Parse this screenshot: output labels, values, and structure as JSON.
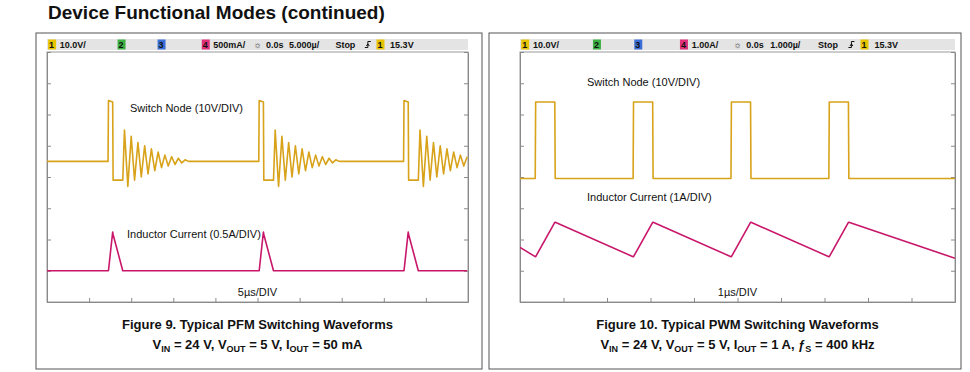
{
  "heading": "Device Functional Modes (continued)",
  "chart_data": [
    {
      "type": "line",
      "title": "Figure 9. Typical PFM Switching Waveforms",
      "subtitle": "VIN = 24 V, VOUT = 5 V, IOUT = 50 mA",
      "status_bar": [
        "1",
        "10.0V/",
        "2",
        "3",
        "4",
        "500mA/",
        "☼",
        "0.0s",
        "5.000µ/",
        "Stop",
        "1",
        "15.3V"
      ],
      "annotations": [
        "5µs/DIV"
      ],
      "x": [
        0,
        7.25,
        7.3,
        7.8,
        7.85,
        9.0,
        9.2,
        9.6,
        10.0,
        10.4,
        10.8,
        11.2,
        11.6,
        12.0,
        12.4,
        12.8,
        13.2,
        13.6,
        14.0,
        14.4,
        14.8,
        15.2,
        15.6,
        16.0,
        16.4,
        16.8,
        25.15,
        25.2,
        25.7,
        25.75,
        26.9,
        27.1,
        27.5,
        27.9,
        28.3,
        28.7,
        29.1,
        29.5,
        29.9,
        30.3,
        30.7,
        31.1,
        31.5,
        31.9,
        32.3,
        32.7,
        33.1,
        33.5,
        33.9,
        34.3,
        34.7,
        42.35,
        42.4,
        42.9,
        42.95,
        44.1,
        44.3,
        44.7,
        45.1,
        45.5,
        45.9,
        46.3,
        46.7,
        47.1,
        47.5,
        47.9,
        48.3,
        48.7,
        49.1,
        49.5,
        49.9
      ],
      "series": [
        {
          "name": "Switch Node (10V/DIV)",
          "color": "#d8a31a",
          "values": [
            5,
            5,
            24.5,
            24,
            -1,
            -1,
            15,
            -3,
            13,
            -1,
            11,
            0,
            10,
            1,
            9,
            2,
            8,
            3,
            7,
            3.5,
            6.5,
            4,
            6,
            4.5,
            5.5,
            5,
            5,
            24.5,
            24,
            -1,
            -1,
            15,
            -3,
            13,
            -1,
            11,
            0,
            10,
            1,
            9,
            2,
            8,
            3,
            7,
            3.5,
            6.5,
            4,
            6,
            4.5,
            5.5,
            5,
            5,
            24.5,
            24,
            -1,
            -1,
            15,
            -3,
            13,
            -1,
            11,
            0,
            10,
            1,
            9,
            2,
            8,
            3,
            7,
            3.5,
            6.5
          ]
        },
        {
          "name": "Inductor Current (0.5A/DIV)",
          "color": "#c8176a",
          "axis": "y2",
          "values": [
            0,
            0,
            0,
            0.62,
            0.58,
            0,
            0,
            0,
            0,
            0,
            0,
            0,
            0,
            0,
            0,
            0,
            0,
            0,
            0,
            0,
            0,
            0,
            0,
            0,
            0,
            0,
            0,
            0,
            0.62,
            0.58,
            0,
            0,
            0,
            0,
            0,
            0,
            0,
            0,
            0,
            0,
            0,
            0,
            0,
            0,
            0,
            0,
            0,
            0,
            0,
            0,
            0,
            0,
            0,
            0.62,
            0.58,
            0,
            0,
            0,
            0,
            0,
            0,
            0,
            0,
            0,
            0,
            0,
            0,
            0,
            0,
            0,
            0
          ]
        }
      ],
      "xlim": [
        0,
        50
      ],
      "xticks": [
        0,
        5,
        10,
        15,
        20,
        25,
        30,
        35,
        40,
        45,
        50
      ],
      "ylim": [
        -40,
        40
      ],
      "yticks": [
        -40,
        -30,
        -20,
        -10,
        0,
        10,
        20,
        30,
        40
      ],
      "y2lim": [
        -0.5,
        3.5
      ],
      "y2ticks": [
        -0.5,
        0,
        0.5,
        1,
        1.5,
        2,
        2.5,
        3,
        3.5
      ],
      "grid": false,
      "tick_labels": false
    },
    {
      "type": "line",
      "title": "Figure 10. Typical PWM Switching Waveforms",
      "subtitle": "VIN = 24 V, VOUT = 5 V, IOUT = 1 A, ƒS = 400 kHz",
      "status_bar": [
        "1",
        "10.0V/",
        "2",
        "3",
        "4",
        "1.00A/",
        "☼",
        "0.0s",
        "1.000µ/",
        "Stop",
        "1",
        "15.3V"
      ],
      "annotations": [
        "1µs/DIV"
      ],
      "x": [
        0,
        0.35,
        0.36,
        0.8,
        0.81,
        2.6,
        2.61,
        3.05,
        3.06,
        4.85,
        4.86,
        5.3,
        5.31,
        7.1,
        7.11,
        7.55,
        7.56,
        10
      ],
      "series": [
        {
          "name": "Switch Node (10V/DIV)",
          "color": "#d8a31a",
          "values": [
            -0.5,
            -0.5,
            24,
            24,
            -0.5,
            -0.5,
            24,
            24,
            -0.5,
            -0.5,
            24,
            24,
            -0.5,
            -0.5,
            24,
            24,
            -0.5,
            -0.5
          ]
        },
        {
          "name": "Inductor Current (1A/DIV)",
          "color": "#c8176a",
          "axis": "y2",
          "values": [
            0.75,
            0.45,
            0.45,
            1.55,
            1.55,
            0.45,
            0.45,
            1.55,
            1.55,
            0.45,
            0.45,
            1.55,
            1.55,
            0.45,
            0.45,
            1.55,
            1.55,
            0.4
          ]
        }
      ],
      "xlim": [
        0,
        10
      ],
      "xticks": [
        0,
        1,
        2,
        3,
        4,
        5,
        6,
        7,
        8,
        9,
        10
      ],
      "ylim": [
        -40,
        40
      ],
      "yticks": [
        -40,
        -30,
        -20,
        -10,
        0,
        10,
        20,
        30,
        40
      ],
      "y2lim": [
        -1,
        7
      ],
      "y2ticks": [
        -1,
        0,
        1,
        2,
        3,
        4,
        5,
        6,
        7
      ],
      "grid": false,
      "tick_labels": false
    }
  ]
}
